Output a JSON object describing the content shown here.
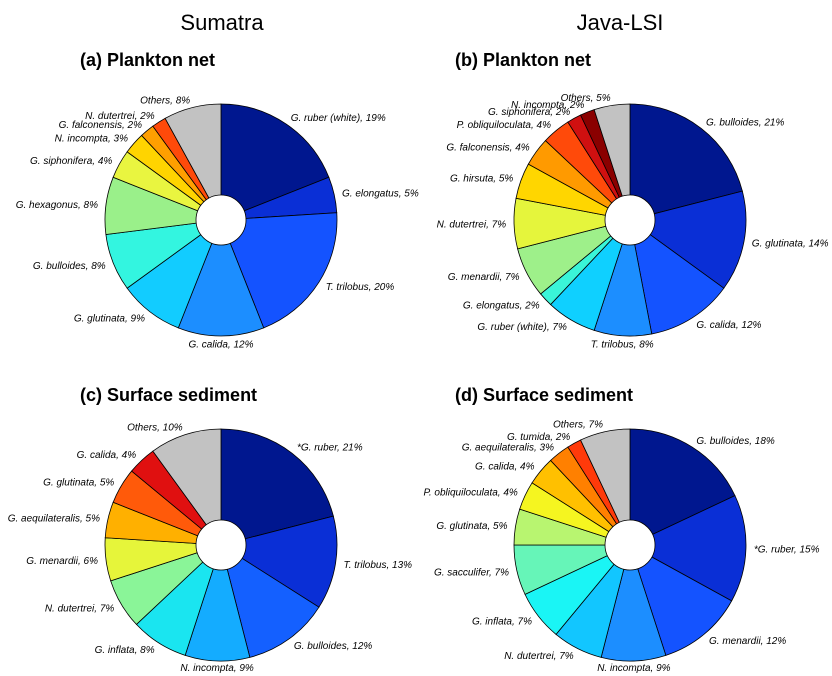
{
  "regions": [
    "Sumatra",
    "Java-LSI"
  ],
  "chart_data": [
    {
      "type": "pie",
      "title": "(a) Plankton net",
      "region": "Sumatra",
      "slices": [
        {
          "name": "G. ruber (white)",
          "value": 19,
          "label": "G. ruber (white), 19%",
          "color": "#00178f"
        },
        {
          "name": "G. elongatus",
          "value": 5,
          "label": "G. elongatus, 5%",
          "color": "#0a2fd6"
        },
        {
          "name": "T. trilobus",
          "value": 20,
          "label": "T. trilobus, 20%",
          "color": "#1453ff"
        },
        {
          "name": "G. calida",
          "value": 12,
          "label": "G. calida, 12%",
          "color": "#1c8eff"
        },
        {
          "name": "G. glutinata",
          "value": 9,
          "label": "G. glutinata, 9%",
          "color": "#12ccff"
        },
        {
          "name": "G. bulloides",
          "value": 8,
          "label": "G. bulloides, 8%",
          "color": "#33f5e0"
        },
        {
          "name": "G. hexagonus",
          "value": 8,
          "label": "G. hexagonus, 8%",
          "color": "#9af08a"
        },
        {
          "name": "G. siphonifera",
          "value": 4,
          "label": "G. siphonifera, 4%",
          "color": "#e9f540"
        },
        {
          "name": "N. incompta",
          "value": 3,
          "label": "N. incompta, 3%",
          "color": "#ffd400"
        },
        {
          "name": "G. falconensis",
          "value": 2,
          "label": "G. falconensis, 2%",
          "color": "#ff9f00"
        },
        {
          "name": "N. dutertrei",
          "value": 2,
          "label": "N. dutertrei, 2%",
          "color": "#ff4a0a"
        },
        {
          "name": "Others",
          "value": 8,
          "label": "Others, 8%",
          "color": "#c2c2c2"
        }
      ]
    },
    {
      "type": "pie",
      "title": "(b) Plankton net",
      "region": "Java-LSI",
      "slices": [
        {
          "name": "G. bulloides",
          "value": 21,
          "label": "G. bulloides, 21%",
          "color": "#00178f"
        },
        {
          "name": "G. glutinata",
          "value": 14,
          "label": "G. glutinata, 14%",
          "color": "#0a2fd6"
        },
        {
          "name": "G. calida",
          "value": 12,
          "label": "G. calida, 12%",
          "color": "#1453ff"
        },
        {
          "name": "T. trilobus",
          "value": 8,
          "label": "T. trilobus, 8%",
          "color": "#1c8eff"
        },
        {
          "name": "G. ruber (white)",
          "value": 7,
          "label": "G. ruber (white), 7%",
          "color": "#0fd0ff"
        },
        {
          "name": "G. elongatus",
          "value": 2,
          "label": "G. elongatus, 2%",
          "color": "#3af5d8"
        },
        {
          "name": "G. menardii",
          "value": 7,
          "label": "G. menardii, 7%",
          "color": "#9ef08a"
        },
        {
          "name": "N. dutertrei",
          "value": 7,
          "label": "N. dutertrei, 7%",
          "color": "#e5f53c"
        },
        {
          "name": "G. hirsuta",
          "value": 5,
          "label": "G. hirsuta, 5%",
          "color": "#ffd600"
        },
        {
          "name": "G. falconensis",
          "value": 4,
          "label": "G. falconensis, 4%",
          "color": "#ff9a00"
        },
        {
          "name": "P. obliquiloculata",
          "value": 4,
          "label": "P. obliquiloculata, 4%",
          "color": "#ff4a0a"
        },
        {
          "name": "G. siphonifera",
          "value": 2,
          "label": "G. siphonifera, 2%",
          "color": "#d01010"
        },
        {
          "name": "N. incompta",
          "value": 2,
          "label": "N. incompta, 2%",
          "color": "#8a0000"
        },
        {
          "name": "Others",
          "value": 5,
          "label": "Others, 5%",
          "color": "#c2c2c2"
        }
      ]
    },
    {
      "type": "pie",
      "title": "(c) Surface sediment",
      "region": "Sumatra",
      "slices": [
        {
          "name": "*G. ruber",
          "value": 21,
          "label": "*G. ruber, 21%",
          "color": "#00178f"
        },
        {
          "name": "T. trilobus",
          "value": 13,
          "label": "T. trilobus, 13%",
          "color": "#0a2fd6"
        },
        {
          "name": "G. bulloides",
          "value": 12,
          "label": "G. bulloides, 12%",
          "color": "#1460ff"
        },
        {
          "name": "N. incompta",
          "value": 9,
          "label": "N. incompta, 9%",
          "color": "#14acff"
        },
        {
          "name": "G. inflata",
          "value": 8,
          "label": "G. inflata, 8%",
          "color": "#1ae5f0"
        },
        {
          "name": "N. dutertrei",
          "value": 7,
          "label": "N. dutertrei, 7%",
          "color": "#8af598"
        },
        {
          "name": "G. menardii",
          "value": 6,
          "label": "G. menardii, 6%",
          "color": "#e6f53a"
        },
        {
          "name": "G. aequilateralis",
          "value": 5,
          "label": "G. aequilateralis, 5%",
          "color": "#ffb000"
        },
        {
          "name": "G. glutinata",
          "value": 5,
          "label": "G. glutinata, 5%",
          "color": "#ff5a0a"
        },
        {
          "name": "G. calida",
          "value": 4,
          "label": "G. calida, 4%",
          "color": "#e01010"
        },
        {
          "name": "Others",
          "value": 10,
          "label": "Others, 10%",
          "color": "#c2c2c2"
        }
      ]
    },
    {
      "type": "pie",
      "title": "(d) Surface sediment",
      "region": "Java-LSI",
      "slices": [
        {
          "name": "G. bulloides",
          "value": 18,
          "label": "G. bulloides, 18%",
          "color": "#00178f"
        },
        {
          "name": "*G. ruber",
          "value": 15,
          "label": "*G. ruber, 15%",
          "color": "#0a2fd6"
        },
        {
          "name": "G. menardii",
          "value": 12,
          "label": "G. menardii, 12%",
          "color": "#1453ff"
        },
        {
          "name": "N. incompta",
          "value": 9,
          "label": "N. incompta, 9%",
          "color": "#1c8eff"
        },
        {
          "name": "N. dutertrei",
          "value": 7,
          "label": "N. dutertrei, 7%",
          "color": "#12c6ff"
        },
        {
          "name": "G. inflata",
          "value": 7,
          "label": "G. inflata, 7%",
          "color": "#1af5f5"
        },
        {
          "name": "G. sacculifer",
          "value": 7,
          "label": "G. sacculifer, 7%",
          "color": "#66f5b8"
        },
        {
          "name": "G. glutinata",
          "value": 5,
          "label": "G. glutinata, 5%",
          "color": "#b8f570"
        },
        {
          "name": "P. obliquiloculata",
          "value": 4,
          "label": "P. obliquiloculata, 4%",
          "color": "#f5f520"
        },
        {
          "name": "G. calida",
          "value": 4,
          "label": "G. calida, 4%",
          "color": "#ffc000"
        },
        {
          "name": "G. aequilateralis",
          "value": 3,
          "label": "G. aequilateralis, 3%",
          "color": "#ff8000"
        },
        {
          "name": "G. tumida",
          "value": 2,
          "label": "G. tumida, 2%",
          "color": "#ff3a0a"
        },
        {
          "name": "Others",
          "value": 7,
          "label": "Others, 7%",
          "color": "#c2c2c2"
        }
      ]
    }
  ]
}
